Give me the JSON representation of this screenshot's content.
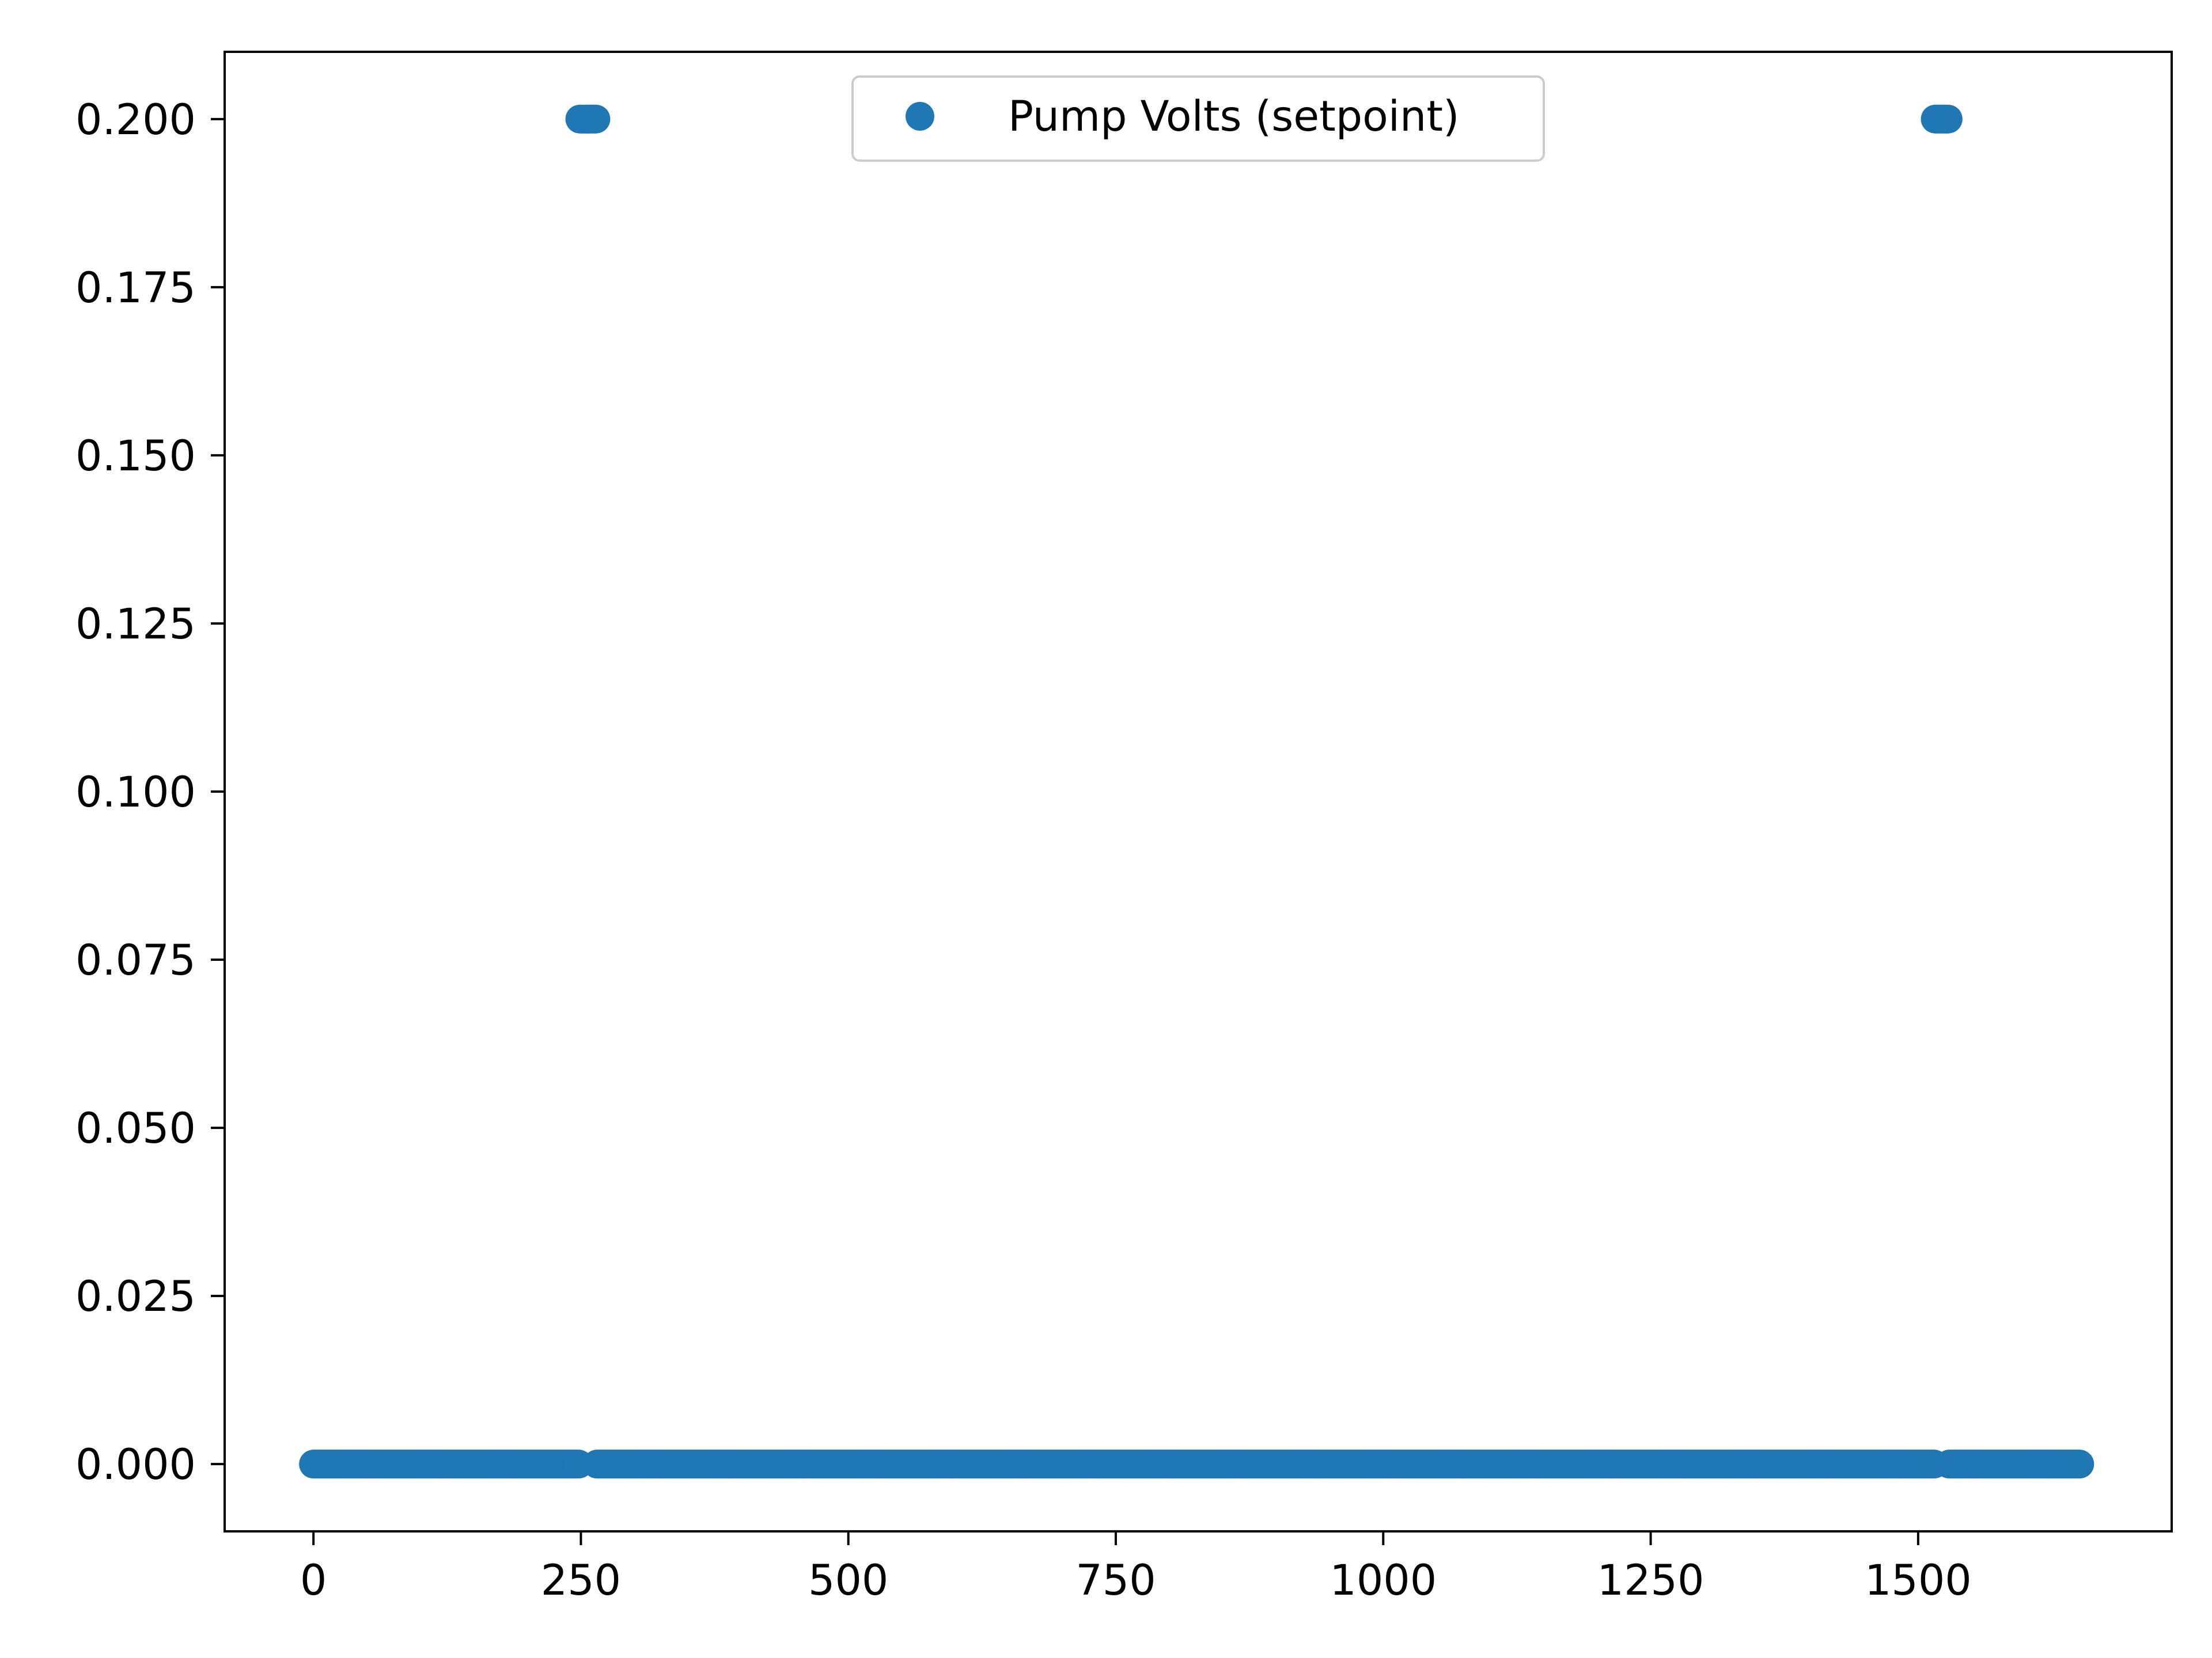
{
  "chart_data": {
    "type": "scatter",
    "title": "",
    "xlabel": "",
    "ylabel": "",
    "xlim": [
      -83,
      1737
    ],
    "ylim": [
      -0.01,
      0.21
    ],
    "x_ticks": [
      0,
      250,
      500,
      750,
      1000,
      1250,
      1500
    ],
    "x_tick_labels": [
      "0",
      "250",
      "500",
      "750",
      "1000",
      "1250",
      "1500"
    ],
    "y_ticks": [
      0.0,
      0.025,
      0.05,
      0.075,
      0.1,
      0.125,
      0.15,
      0.175,
      0.2
    ],
    "y_tick_labels": [
      "0.000",
      "0.025",
      "0.050",
      "0.075",
      "0.100",
      "0.125",
      "0.150",
      "0.175",
      "0.200"
    ],
    "grid": false,
    "legend_position": "top-center",
    "series": [
      {
        "name": "Pump Volts (setpoint)",
        "color": "#1f77b4",
        "marker": "circle",
        "segments": [
          {
            "x_start": 0,
            "x_end": 248,
            "step": 1,
            "y": 0.0
          },
          {
            "x_start": 249,
            "x_end": 264,
            "step": 1,
            "y": 0.2
          },
          {
            "x_start": 265,
            "x_end": 1515,
            "step": 1,
            "y": 0.0
          },
          {
            "x_start": 1516,
            "x_end": 1528,
            "step": 1,
            "y": 0.2
          },
          {
            "x_start": 1529,
            "x_end": 1651,
            "step": 1,
            "y": 0.0
          }
        ]
      }
    ]
  }
}
